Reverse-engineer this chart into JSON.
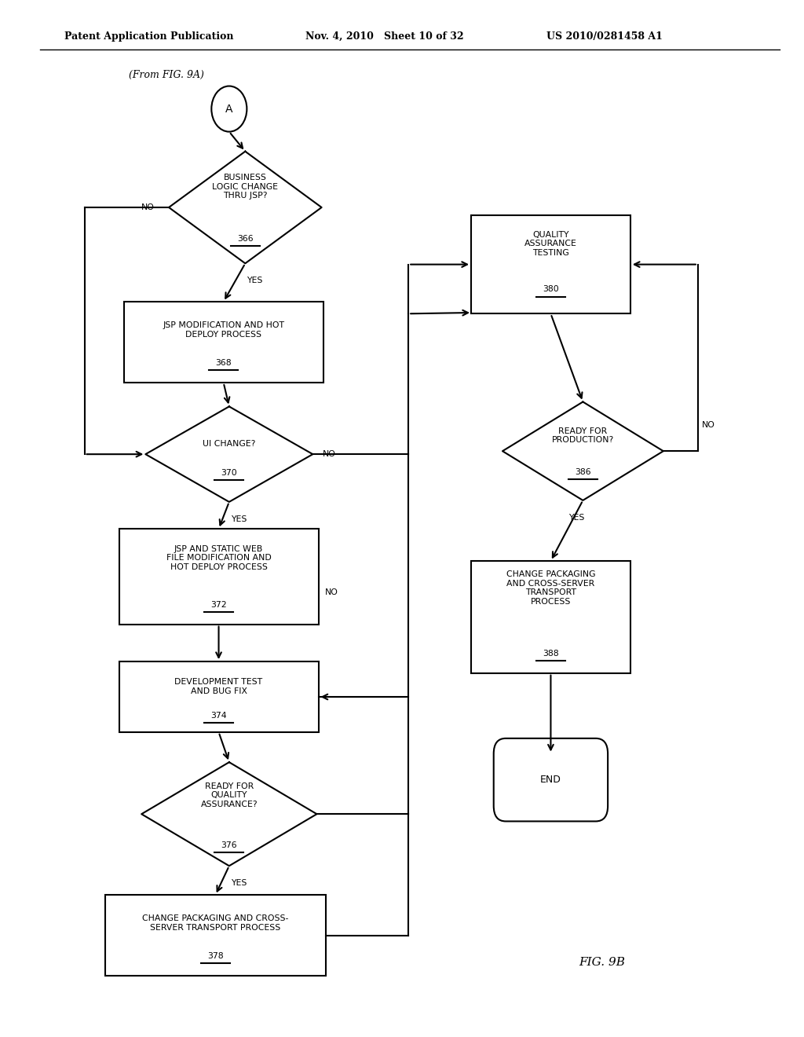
{
  "title_left": "Patent Application Publication",
  "title_mid": "Nov. 4, 2010   Sheet 10 of 32",
  "title_right": "US 2010/0281458 A1",
  "fig_label": "FIG. 9B",
  "from_label": "(From FIG. 9A)",
  "background": "#ffffff"
}
